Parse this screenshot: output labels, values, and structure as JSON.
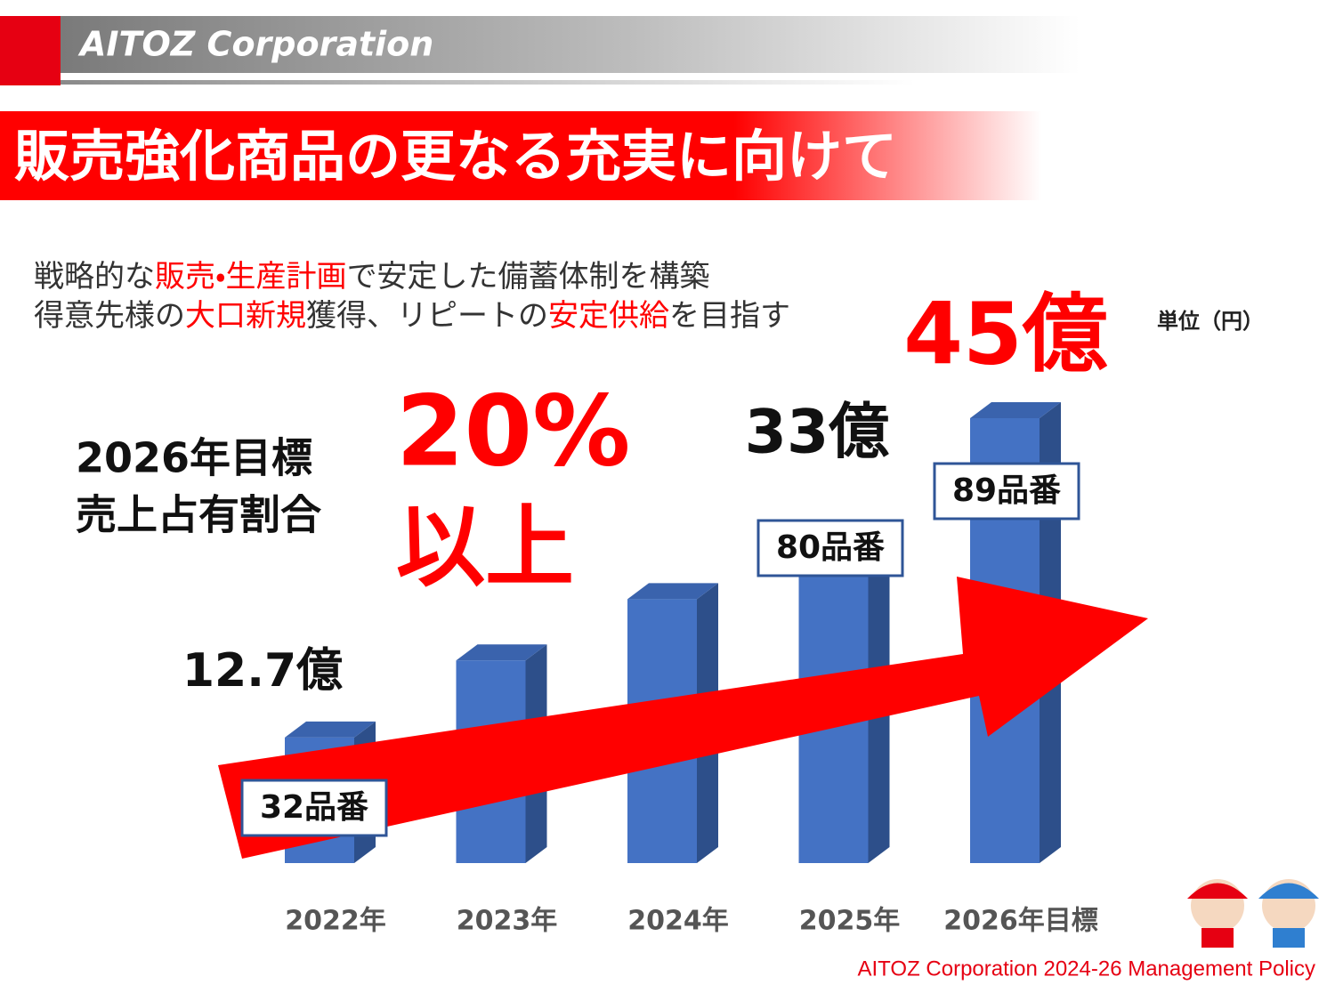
{
  "header": {
    "company": "AITOZ Corporation"
  },
  "title": "販売強化商品の更なる充実に向けて",
  "subtitle": [
    [
      "戦略的な",
      "販売・生産計画",
      "で安定した備蓄体制を構築"
    ],
    [
      "得意先様の",
      "大口新規",
      "獲得、リピートの",
      "安定供給",
      "を目指す"
    ]
  ],
  "target": {
    "label_lines": [
      "2026年目標",
      "売上占有割合"
    ],
    "value_lines": [
      "20%",
      "以上"
    ]
  },
  "unit": "単位（円）",
  "chart_data": {
    "type": "bar3d",
    "categories": [
      "2022年",
      "2023年",
      "2024年",
      "2025年",
      "2026年目標"
    ],
    "values": [
      12.7,
      20.5,
      26.7,
      33,
      45
    ],
    "value_labels": [
      "12.7億",
      null,
      null,
      "33億",
      "45億"
    ],
    "item_labels": [
      "32品番",
      null,
      null,
      "80品番",
      "89品番"
    ],
    "color": "#4472c4"
  },
  "footer": "AITOZ Corporation 2024-26 Management Policy"
}
